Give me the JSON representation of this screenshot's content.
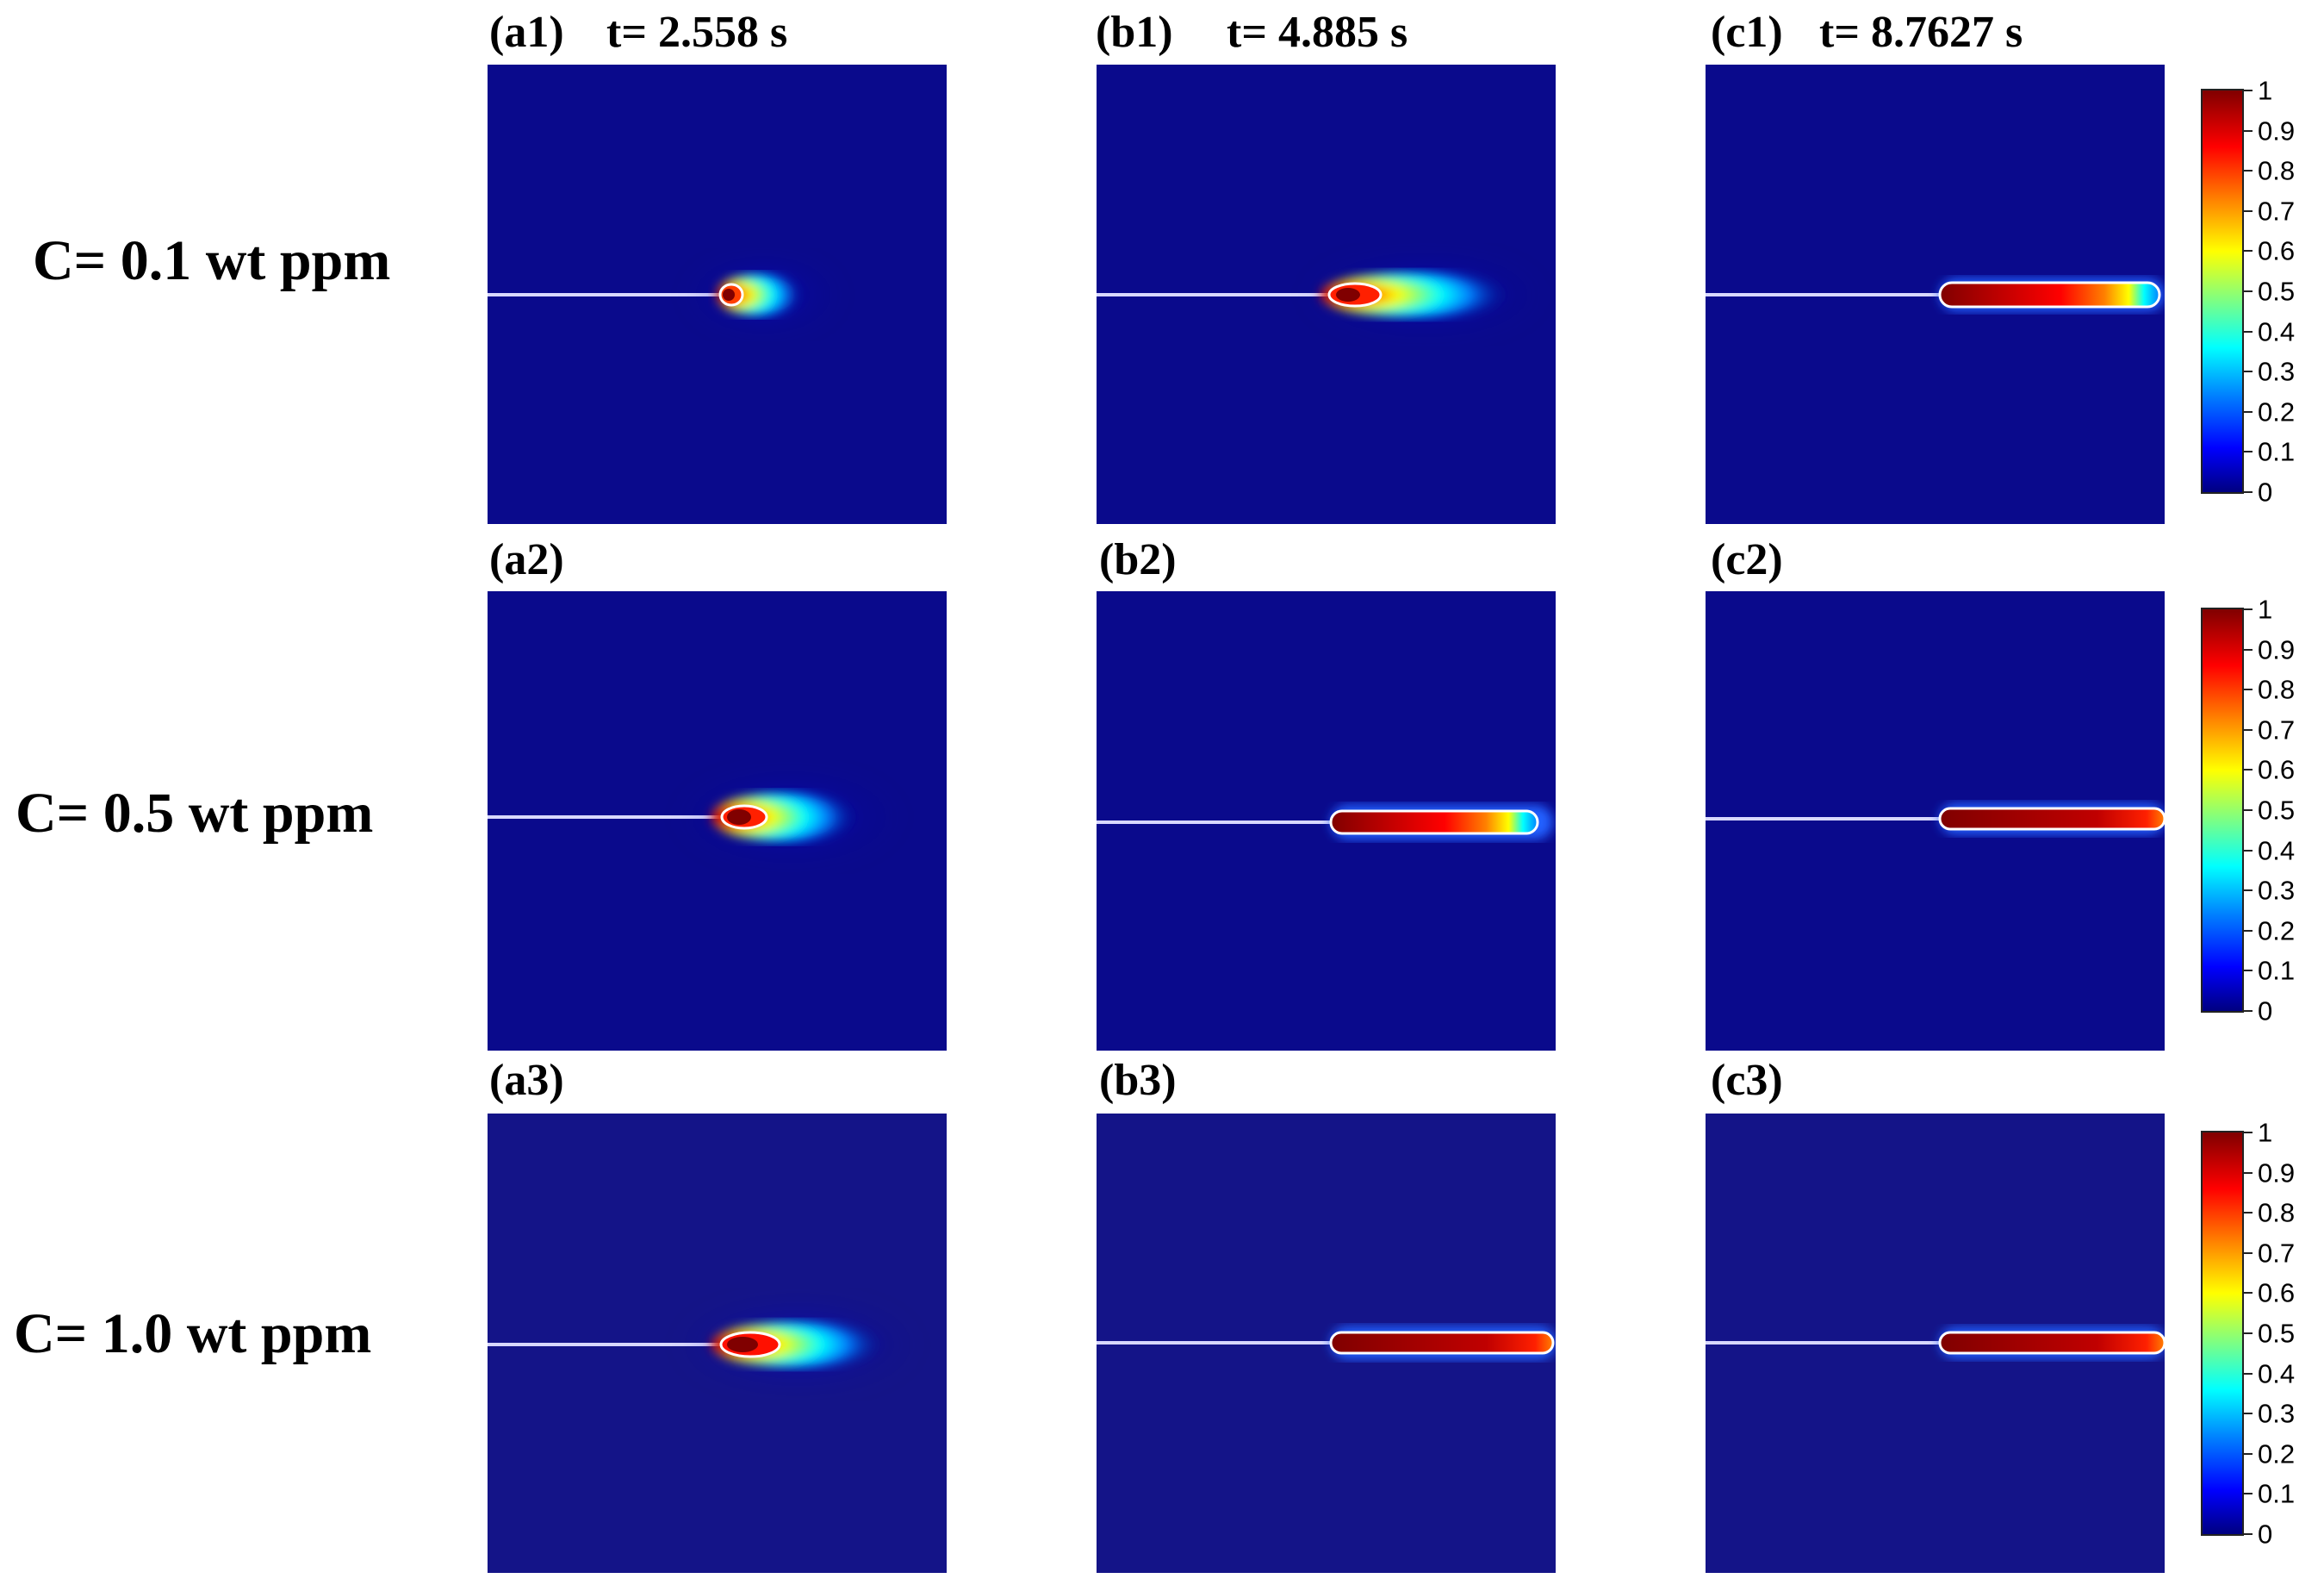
{
  "row_labels": [
    "C= 0.1 wt ppm",
    "C= 0.5 wt ppm",
    "C= 1.0 wt ppm"
  ],
  "panel_labels": {
    "a1": "(a1)",
    "b1": "(b1)",
    "c1": "(c1)",
    "a2": "(a2)",
    "b2": "(b2)",
    "c2": "(c2)",
    "a3": "(a3)",
    "b3": "(b3)",
    "c3": "(c3)"
  },
  "time_labels": [
    "t= 2.558 s",
    "t= 4.885 s",
    "t= 8.7627 s"
  ],
  "colorbar_ticks": [
    "0",
    "0.1",
    "0.2",
    "0.3",
    "0.4",
    "0.5",
    "0.6",
    "0.7",
    "0.8",
    "0.9",
    "1"
  ],
  "colormap": [
    "#000080",
    "#0000ff",
    "#0080ff",
    "#00ffff",
    "#80ff80",
    "#ffff00",
    "#ff8000",
    "#ff0000",
    "#800000"
  ],
  "background_color": "#0a0a8c",
  "crack_color": "#d8d8ff"
}
